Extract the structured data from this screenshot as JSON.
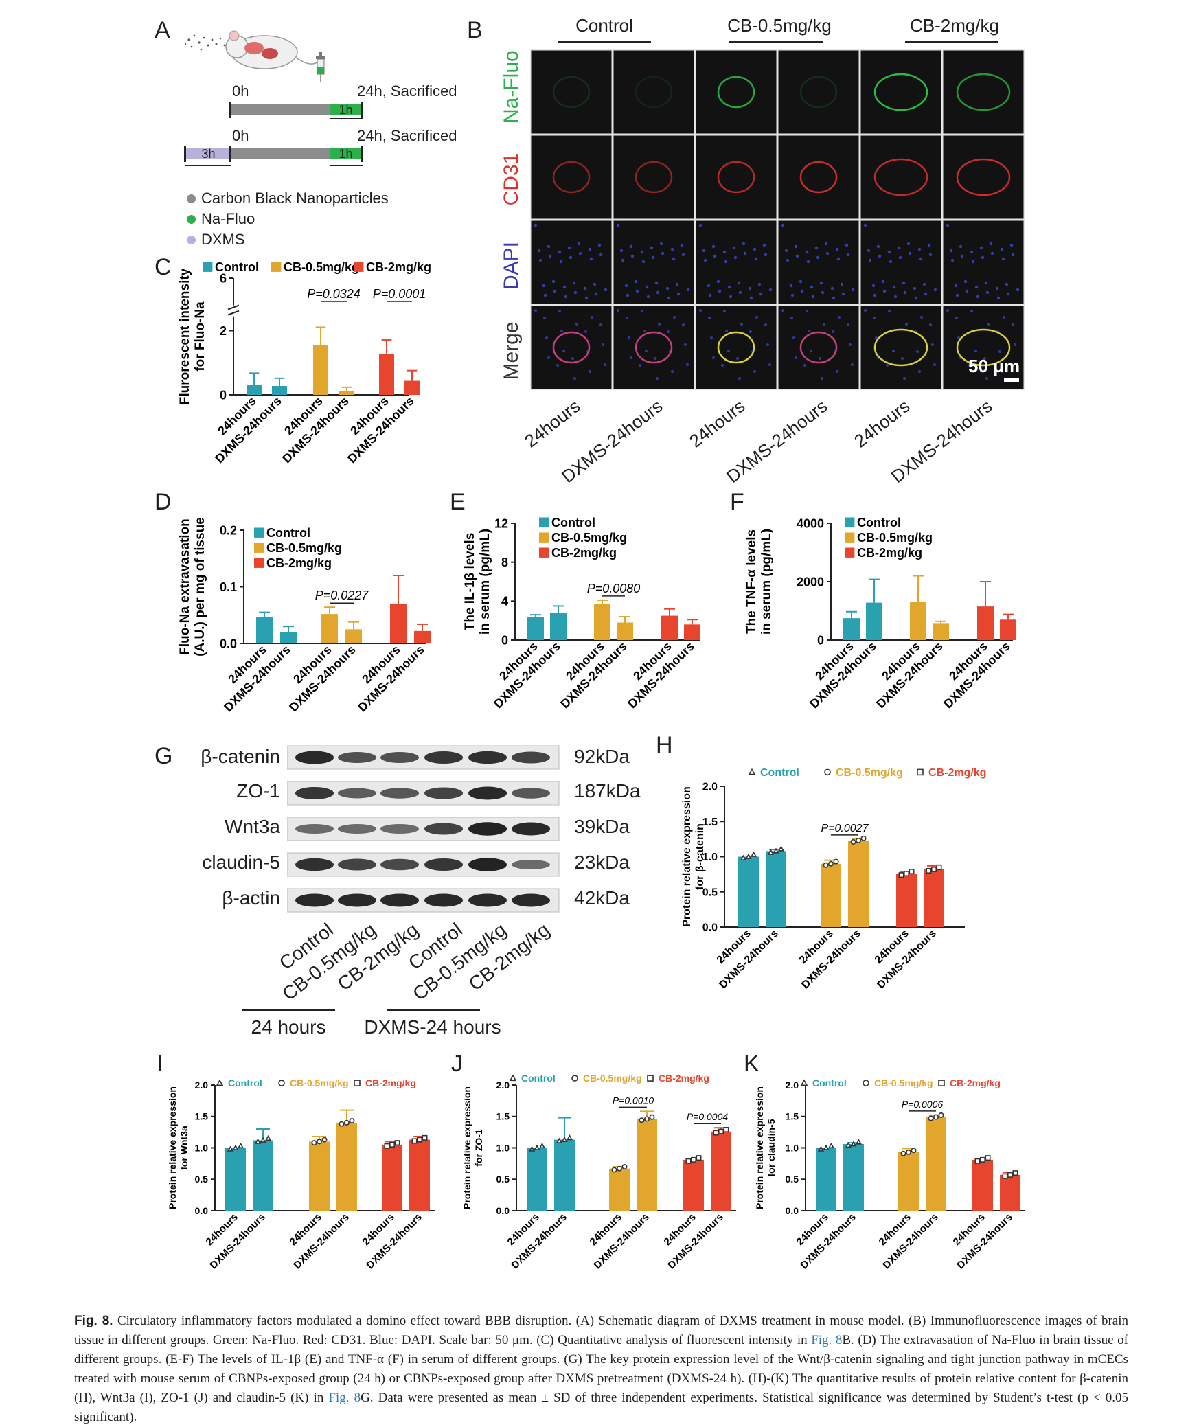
{
  "panel_labels": [
    "A",
    "B",
    "C",
    "D",
    "E",
    "F",
    "G",
    "H",
    "I",
    "J",
    "K"
  ],
  "colors": {
    "control": "#2aa1b1",
    "cb05": "#e2a62d",
    "cb2": "#e8452e",
    "nafluo": "#2bb04a",
    "dxms": "#b9b0dc",
    "timeline": "#8c8c8c",
    "link": "#2a7ab8"
  },
  "schematic": {
    "time_labels": [
      "0h",
      "24h, Sacrificed",
      "0h",
      "24h, Sacrificed"
    ],
    "segment_labels": {
      "one_hour": "1h",
      "three_hours": "3h"
    },
    "legend": [
      {
        "label": "Carbon Black Nanoparticles",
        "color": "#8c8c8c"
      },
      {
        "label": "Na-Fluo",
        "color": "#2bb04a"
      },
      {
        "label": "DXMS",
        "color": "#b9b0dc"
      }
    ]
  },
  "micrograph": {
    "columns": [
      "Control",
      "CB-0.5mg/kg",
      "CB-2mg/kg"
    ],
    "rows": [
      {
        "label": "Na-Fluo",
        "color": "#2bb04a"
      },
      {
        "label": "CD31",
        "color": "#e03030"
      },
      {
        "label": "DAPI",
        "color": "#3a3ac0"
      },
      {
        "label": "Merge",
        "color": "#333333"
      }
    ],
    "x_labels": [
      "24hours",
      "DXMS-24hours",
      "24hours",
      "DXMS-24hours",
      "24hours",
      "DXMS-24hours"
    ],
    "scale_bar": "50 μm"
  },
  "chart_data": [
    {
      "panel": "C",
      "type": "bar",
      "ylabel": "Flurorescent intensity\nfor Fluo-Na",
      "legend": [
        "Control",
        "CB-0.5mg/kg",
        "CB-2mg/kg"
      ],
      "categories": [
        "24hours",
        "DXMS-24hours",
        "24hours",
        "DXMS-24hours",
        "24hours",
        "DXMS-24hours"
      ],
      "values": [
        0.4,
        0.35,
        1.95,
        0.15,
        1.6,
        0.55
      ],
      "errors": [
        0.45,
        0.3,
        0.7,
        0.15,
        0.55,
        0.4
      ],
      "yticks": [
        "0",
        "2",
        "6"
      ],
      "ylim": [
        0,
        6
      ],
      "axis_break": true,
      "annotations": [
        {
          "text": "P=0.0324",
          "from": 2,
          "to": 3
        },
        {
          "text": "P=0.0001",
          "from": 4,
          "to": 5
        }
      ]
    },
    {
      "panel": "D",
      "type": "bar",
      "ylabel": "Fluo-Na extravasation\n(A.U.) per mg of tissue",
      "legend": [
        "Control",
        "CB-0.5mg/kg",
        "CB-2mg/kg"
      ],
      "categories": [
        "24hours",
        "DXMS-24hours",
        "24hours",
        "DXMS-24hours",
        "24hours",
        "DXMS-24hours"
      ],
      "values": [
        0.047,
        0.02,
        0.052,
        0.025,
        0.07,
        0.022
      ],
      "errors": [
        0.008,
        0.01,
        0.012,
        0.013,
        0.05,
        0.012
      ],
      "yticks": [
        "0.0",
        "0.1",
        "0.2"
      ],
      "ylim": [
        0,
        0.2
      ],
      "annotations": [
        {
          "text": "P=0.0227",
          "from": 2,
          "to": 3
        }
      ]
    },
    {
      "panel": "E",
      "type": "bar",
      "ylabel": "The IL-1β levels\nin serum (pg/mL)",
      "legend": [
        "Control",
        "CB-0.5mg/kg",
        "CB-2mg/kg"
      ],
      "categories": [
        "24hours",
        "DXMS-24hours",
        "24hours",
        "DXMS-24hours",
        "24hours",
        "DXMS-24hours"
      ],
      "values": [
        2.4,
        2.8,
        3.7,
        1.8,
        2.5,
        1.6
      ],
      "errors": [
        0.2,
        0.7,
        0.4,
        0.6,
        0.7,
        0.5
      ],
      "yticks": [
        "0",
        "4",
        "8",
        "12"
      ],
      "ylim": [
        0,
        12
      ],
      "annotations": [
        {
          "text": "P=0.0080",
          "from": 2,
          "to": 3
        }
      ]
    },
    {
      "panel": "F",
      "type": "bar",
      "ylabel": "The TNF-α levels\nin serum (pg/mL)",
      "legend": [
        "Control",
        "CB-0.5mg/kg",
        "CB-2mg/kg"
      ],
      "categories": [
        "24hours",
        "DXMS-24hours",
        "24hours",
        "DXMS-24hours",
        "24hours",
        "DXMS-24hours"
      ],
      "values": [
        750,
        1280,
        1300,
        580,
        1150,
        700
      ],
      "errors": [
        220,
        800,
        900,
        60,
        850,
        180
      ],
      "yticks": [
        "0",
        "2000",
        "4000"
      ],
      "ylim": [
        0,
        4000
      ],
      "annotations": []
    },
    {
      "panel": "H",
      "type": "bar",
      "ylabel": "Protein relative expression\nfor β-catenin",
      "legend": [
        "Control",
        "CB-0.5mg/kg",
        "CB-2mg/kg"
      ],
      "categories": [
        "24hours",
        "DXMS-24hours",
        "24hours",
        "DXMS-24hours",
        "24hours",
        "DXMS-24hours"
      ],
      "values": [
        1.0,
        1.08,
        0.9,
        1.23,
        0.76,
        0.82
      ],
      "errors": [
        0,
        0.02,
        0.05,
        0.02,
        0.02,
        0.05
      ],
      "yticks": [
        "0.0",
        "0.5",
        "1.0",
        "1.5",
        "2.0"
      ],
      "ylim": [
        0,
        2.0
      ],
      "annotations": [
        {
          "text": "P=0.0027",
          "from": 2,
          "to": 3
        }
      ]
    },
    {
      "panel": "I",
      "type": "bar",
      "ylabel": "Protein relative expression\nfor Wnt3a",
      "legend": [
        "Control",
        "CB-0.5mg/kg",
        "CB-2mg/kg"
      ],
      "categories": [
        "24hours",
        "DXMS-24hours",
        "24hours",
        "DXMS-24hours",
        "24hours",
        "DXMS-24hours"
      ],
      "values": [
        1.0,
        1.12,
        1.1,
        1.4,
        1.05,
        1.13
      ],
      "errors": [
        0,
        0.18,
        0.08,
        0.2,
        0.05,
        0.05
      ],
      "yticks": [
        "0.0",
        "0.5",
        "1.0",
        "1.5",
        "2.0"
      ],
      "ylim": [
        0,
        2.0
      ],
      "annotations": []
    },
    {
      "panel": "J",
      "type": "bar",
      "ylabel": "Protein relative expression\nfor ZO-1",
      "legend": [
        "Control",
        "CB-0.5mg/kg",
        "CB-2mg/kg"
      ],
      "categories": [
        "24hours",
        "DXMS-24hours",
        "24hours",
        "DXMS-24hours",
        "24hours",
        "DXMS-24hours"
      ],
      "values": [
        1.0,
        1.13,
        0.67,
        1.46,
        0.81,
        1.26
      ],
      "errors": [
        0,
        0.35,
        0.03,
        0.12,
        0.02,
        0.06
      ],
      "yticks": [
        "0.0",
        "0.5",
        "1.0",
        "1.5",
        "2.0"
      ],
      "ylim": [
        0,
        2.0
      ],
      "annotations": [
        {
          "text": "P=0.0010",
          "from": 2,
          "to": 3
        },
        {
          "text": "P=0.0004",
          "from": 4,
          "to": 5
        }
      ]
    },
    {
      "panel": "K",
      "type": "bar",
      "ylabel": "Protein relative expression\nfor claudin-5",
      "legend": [
        "Control",
        "CB-0.5mg/kg",
        "CB-2mg/kg"
      ],
      "categories": [
        "24hours",
        "DXMS-24hours",
        "24hours",
        "DXMS-24hours",
        "24hours",
        "DXMS-24hours"
      ],
      "values": [
        1.0,
        1.06,
        0.93,
        1.49,
        0.81,
        0.57
      ],
      "errors": [
        0,
        0.02,
        0.06,
        0.03,
        0.02,
        0.04
      ],
      "yticks": [
        "0.0",
        "0.5",
        "1.0",
        "1.5",
        "2.0"
      ],
      "ylim": [
        0,
        2.0
      ],
      "annotations": [
        {
          "text": "P=0.0006",
          "from": 2,
          "to": 3
        }
      ]
    }
  ],
  "blot": {
    "proteins": [
      {
        "name": "β-catenin",
        "kda": "92kDa"
      },
      {
        "name": "ZO-1",
        "kda": "187kDa"
      },
      {
        "name": "Wnt3a",
        "kda": "39kDa"
      },
      {
        "name": "claudin-5",
        "kda": "23kDa"
      },
      {
        "name": "β-actin",
        "kda": "42kDa"
      }
    ],
    "lanes": [
      "Control",
      "CB-0.5mg/kg",
      "CB-2mg/kg",
      "Control",
      "CB-0.5mg/kg",
      "CB-2mg/kg"
    ],
    "groups": [
      "24 hours",
      "DXMS-24 hours"
    ]
  },
  "caption": {
    "fig": "Fig. 8.",
    "p1": " Circulatory inflammatory factors modulated a domino effect toward BBB disruption. (A) Schematic diagram of DXMS treatment in mouse model. (B) Immunofluorescence images of brain tissue in different groups. Green: Na-Fluo. Red: CD31. Blue: DAPI. Scale bar: 50 μm. (C) Quantitative analysis of fluorescent intensity in ",
    "link1": "Fig. 8",
    "p2": "B. (D) The extravasation of Na-Fluo in brain tissue of different groups. (E-F) The levels of IL-1β (E) and TNF-α (F) in serum of different groups. (G) The key protein expression level of the Wnt/β-catenin signaling and tight junction pathway in mCECs treated with mouse serum of CBNPs-exposed group (24 h) or CBNPs-exposed group after DXMS pretreatment (DXMS-24 h). (H)-(K) The quantitative results of protein relative content for β-catenin (H), Wnt3a (I), ZO-1 (J) and claudin-5 (K) in ",
    "link2": "Fig. 8",
    "p3": "G. Data were presented as mean ± SD of three independent experiments. Statistical significance was determined by Student’s t-test (p < 0.05 significant)."
  }
}
